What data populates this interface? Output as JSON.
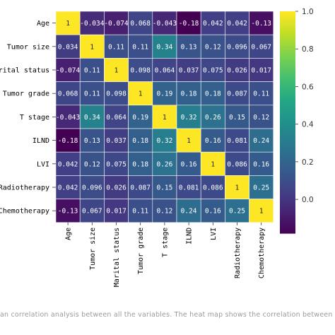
{
  "chart_data": {
    "type": "heatmap",
    "labels": [
      "Age",
      "Tumor size",
      "Marital status",
      "Tumor grade",
      "T stage",
      "ILND",
      "LVI",
      "Radiotherapy",
      "Chemotherapy"
    ],
    "row_labels_visible": [
      "Age",
      "Tumor size",
      "rital status",
      "Tumor grade",
      "T stage",
      "ILND",
      "LVI",
      "Radiotherapy",
      "Chemotherapy"
    ],
    "values": [
      [
        1,
        -0.034,
        -0.074,
        0.068,
        -0.043,
        -0.18,
        0.042,
        0.042,
        -0.13
      ],
      [
        0.034,
        1,
        0.11,
        0.11,
        0.34,
        0.13,
        0.12,
        0.096,
        0.067
      ],
      [
        -0.074,
        0.11,
        1,
        0.098,
        0.064,
        0.037,
        0.075,
        0.026,
        0.017
      ],
      [
        0.068,
        0.11,
        0.098,
        1,
        0.19,
        0.18,
        0.18,
        0.087,
        0.11
      ],
      [
        -0.043,
        0.34,
        0.064,
        0.19,
        1,
        0.32,
        0.26,
        0.15,
        0.12
      ],
      [
        -0.18,
        0.13,
        0.037,
        0.18,
        0.32,
        1,
        0.16,
        0.081,
        0.24
      ],
      [
        0.042,
        0.12,
        0.075,
        0.18,
        0.26,
        0.16,
        1,
        0.086,
        0.16
      ],
      [
        0.042,
        0.096,
        0.026,
        0.087,
        0.15,
        0.081,
        0.086,
        1,
        0.25
      ],
      [
        -0.13,
        0.067,
        0.017,
        0.11,
        0.12,
        0.24,
        0.16,
        0.25,
        1
      ]
    ],
    "cell_text": [
      [
        "1",
        "-0.034",
        "-0.074",
        "0.068",
        "-0.043",
        "-0.18",
        "0.042",
        "0.042",
        "-0.13"
      ],
      [
        "0.034",
        "1",
        "0.11",
        "0.11",
        "0.34",
        "0.13",
        "0.12",
        "0.096",
        "0.067"
      ],
      [
        "-0.074",
        "0.11",
        "1",
        "0.098",
        "0.064",
        "0.037",
        "0.075",
        "0.026",
        "0.017"
      ],
      [
        "0.068",
        "0.11",
        "0.098",
        "1",
        "0.19",
        "0.18",
        "0.18",
        "0.087",
        "0.11"
      ],
      [
        "-0.043",
        "0.34",
        "0.064",
        "0.19",
        "1",
        "0.32",
        "0.26",
        "0.15",
        "0.12"
      ],
      [
        "-0.18",
        "0.13",
        "0.037",
        "0.18",
        "0.32",
        "1",
        "0.16",
        "0.081",
        "0.24"
      ],
      [
        "0.042",
        "0.12",
        "0.075",
        "0.18",
        "0.26",
        "0.16",
        "1",
        "0.086",
        "0.16"
      ],
      [
        "0.042",
        "0.096",
        "0.026",
        "0.087",
        "0.15",
        "0.081",
        "0.086",
        "1",
        "0.25"
      ],
      [
        "-0.13",
        "0.067",
        "0.017",
        "0.11",
        "0.12",
        "0.24",
        "0.16",
        "0.25",
        "1"
      ]
    ],
    "colormap": "viridis",
    "vmin": -0.18,
    "vmax": 1.0,
    "colorbar_ticks": [
      1.0,
      0.8,
      0.6,
      0.4,
      0.2,
      0.0
    ],
    "colorbar_tick_labels": [
      "1.0",
      "0.8",
      "0.6",
      "0.4",
      "0.2",
      "0.0"
    ],
    "grid": true
  },
  "caption": "an correlation analysis between all the variables. The heat map shows the correlation between SCCP patients' c"
}
